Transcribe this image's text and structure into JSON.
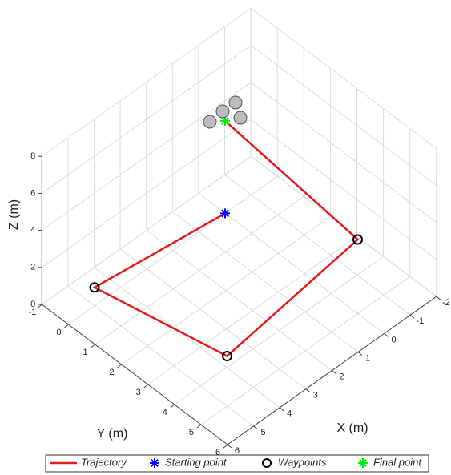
{
  "chart_data": {
    "type": "line3d",
    "xlabel": "X (m)",
    "ylabel": "Y (m)",
    "zlabel": "Z (m)",
    "xlim": [
      -2,
      6
    ],
    "ylim": [
      -1,
      6
    ],
    "zlim": [
      0,
      8
    ],
    "xticks": [
      -2,
      -1,
      0,
      1,
      2,
      3,
      4,
      5,
      6
    ],
    "yticks": [
      -1,
      0,
      1,
      2,
      3,
      4,
      5,
      6
    ],
    "zticks": [
      0,
      2,
      4,
      6,
      8
    ],
    "grid": true,
    "legend": "bottom",
    "series": [
      {
        "name": "Trajectory",
        "color": "#e41a1c",
        "marker": "line",
        "x": [
          0,
          5,
          5,
          0,
          0
        ],
        "y": [
          0,
          0,
          5,
          5,
          0
        ],
        "z": [
          0,
          1,
          2.7,
          4,
          5
        ]
      },
      {
        "name": "Starting point",
        "color": "#0000ff",
        "marker": "asterisk",
        "x": [
          0
        ],
        "y": [
          0
        ],
        "z": [
          0
        ]
      },
      {
        "name": "Waypoints",
        "color": "#000000",
        "marker": "circle",
        "x": [
          5,
          5,
          0
        ],
        "y": [
          0,
          5,
          5
        ],
        "z": [
          1,
          2.7,
          4
        ]
      },
      {
        "name": "Final point",
        "color": "#00ee00",
        "marker": "asterisk",
        "x": [
          0
        ],
        "y": [
          0
        ],
        "z": [
          5
        ]
      }
    ]
  }
}
